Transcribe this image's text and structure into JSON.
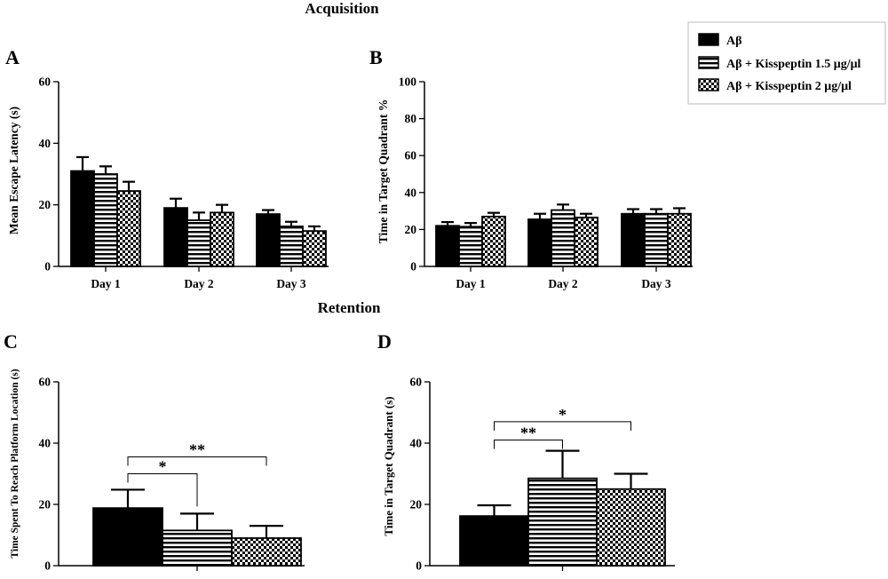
{
  "figure": {
    "section_top": "Acquisition",
    "section_bottom": "Retention"
  },
  "legend": {
    "entries": [
      {
        "label": "Aβ",
        "pattern": "solid"
      },
      {
        "label": "Aβ + Kisspeptin 1.5 μg/μl",
        "pattern": "stripes"
      },
      {
        "label": "Aβ + Kisspeptin 2 μg/μl",
        "pattern": "checker"
      }
    ]
  },
  "chart_data": [
    {
      "panel": "A",
      "type": "bar",
      "categories": [
        "Day 1",
        "Day 2",
        "Day 3"
      ],
      "series": [
        {
          "name": "Aβ",
          "values": [
            31,
            19,
            17
          ],
          "errors": [
            4.5,
            3,
            1.3
          ]
        },
        {
          "name": "Aβ + Kisspeptin 1.5 μg/μl",
          "values": [
            30,
            15,
            13
          ],
          "errors": [
            2.5,
            2.5,
            1.5
          ]
        },
        {
          "name": "Aβ + Kisspeptin 2 μg/μl",
          "values": [
            24.5,
            17.5,
            11.5
          ],
          "errors": [
            3,
            2.5,
            1.5
          ]
        }
      ],
      "ylabel": "Mean Escape Latency (s)",
      "ylim": [
        0,
        60
      ],
      "yticks": [
        0,
        20,
        40,
        60
      ],
      "grid": false
    },
    {
      "panel": "B",
      "type": "bar",
      "categories": [
        "Day 1",
        "Day 2",
        "Day 3"
      ],
      "series": [
        {
          "name": "Aβ",
          "values": [
            22,
            25.5,
            28.5
          ],
          "errors": [
            2,
            3,
            2.5
          ]
        },
        {
          "name": "Aβ + Kisspeptin 1.5 μg/μl",
          "values": [
            21.5,
            30.5,
            28.5
          ],
          "errors": [
            2,
            3,
            2.5
          ]
        },
        {
          "name": "Aβ + Kisspeptin 2 μg/μl",
          "values": [
            27,
            26.5,
            28.5
          ],
          "errors": [
            2,
            2,
            3
          ]
        }
      ],
      "ylabel": "Time in Target Quadrant %",
      "ylim": [
        0,
        100
      ],
      "yticks": [
        0,
        20,
        40,
        60,
        80,
        100
      ],
      "grid": false
    },
    {
      "panel": "C",
      "type": "bar",
      "categories": [
        ""
      ],
      "series": [
        {
          "name": "Aβ",
          "values": [
            18.8
          ],
          "errors": [
            6
          ]
        },
        {
          "name": "Aβ + Kisspeptin 1.5 μg/μl",
          "values": [
            11.5
          ],
          "errors": [
            5.5
          ]
        },
        {
          "name": "Aβ + Kisspeptin 2 μg/μl",
          "values": [
            9
          ],
          "errors": [
            4
          ]
        }
      ],
      "ylabel": "Time Spent To Reach Platform Location (s)",
      "ylim": [
        0,
        60
      ],
      "yticks": [
        0,
        20,
        40,
        60
      ],
      "grid": false,
      "annotations": [
        {
          "from": 0,
          "to": 1,
          "label": "*",
          "level": 30
        },
        {
          "from": 0,
          "to": 2,
          "label": "**",
          "level": 35.5
        }
      ]
    },
    {
      "panel": "D",
      "type": "bar",
      "categories": [
        ""
      ],
      "series": [
        {
          "name": "Aβ",
          "values": [
            16.2
          ],
          "errors": [
            3.5
          ]
        },
        {
          "name": "Aβ + Kisspeptin 1.5 μg/μl",
          "values": [
            28.5
          ],
          "errors": [
            9
          ]
        },
        {
          "name": "Aβ + Kisspeptin 2 μg/μl",
          "values": [
            25
          ],
          "errors": [
            5
          ]
        }
      ],
      "ylabel": "Time in Target Quadrant (s)",
      "ylim": [
        0,
        60
      ],
      "yticks": [
        0,
        20,
        40,
        60
      ],
      "grid": false,
      "annotations": [
        {
          "from": 0,
          "to": 1,
          "label": "**",
          "level": 41
        },
        {
          "from": 0,
          "to": 2,
          "label": "*",
          "level": 47
        }
      ]
    }
  ]
}
